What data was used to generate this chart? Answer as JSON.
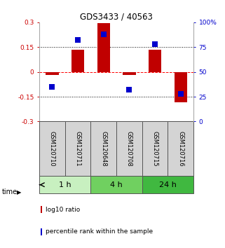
{
  "title": "GDS3433 / 40563",
  "samples": [
    "GSM120710",
    "GSM120711",
    "GSM120648",
    "GSM120708",
    "GSM120715",
    "GSM120716"
  ],
  "log10_ratio": [
    -0.02,
    0.135,
    0.295,
    -0.02,
    0.135,
    -0.185
  ],
  "percentile_rank": [
    35,
    82,
    88,
    32,
    78,
    28
  ],
  "bar_color": "#c00000",
  "dot_color": "#0000cc",
  "ylim_left": [
    -0.3,
    0.3
  ],
  "ylim_right": [
    0,
    100
  ],
  "yticks_left": [
    -0.3,
    -0.15,
    0,
    0.15,
    0.3
  ],
  "yticks_right": [
    0,
    25,
    50,
    75,
    100
  ],
  "ytick_labels_left": [
    "-0.3",
    "-0.15",
    "0",
    "0.15",
    "0.3"
  ],
  "ytick_labels_right": [
    "0",
    "25",
    "50",
    "75",
    "100%"
  ],
  "hlines": [
    -0.15,
    0,
    0.15
  ],
  "hline_styles": [
    "dotted",
    "dashed",
    "dotted"
  ],
  "hline_colors": [
    "black",
    "red",
    "black"
  ],
  "groups": [
    {
      "label": "1 h",
      "n_samples": 2,
      "color": "#c8f0c0"
    },
    {
      "label": "4 h",
      "n_samples": 2,
      "color": "#70d060"
    },
    {
      "label": "24 h",
      "n_samples": 2,
      "color": "#40b840"
    }
  ],
  "legend_items": [
    {
      "label": "log10 ratio",
      "color": "#c00000"
    },
    {
      "label": "percentile rank within the sample",
      "color": "#0000cc"
    }
  ],
  "bar_width": 0.5,
  "dot_size": 30,
  "left_tick_color": "#cc0000",
  "right_tick_color": "#0000cc",
  "sample_box_color": "#d4d4d4",
  "sample_box_edge": "#555555",
  "background_color": "#ffffff"
}
